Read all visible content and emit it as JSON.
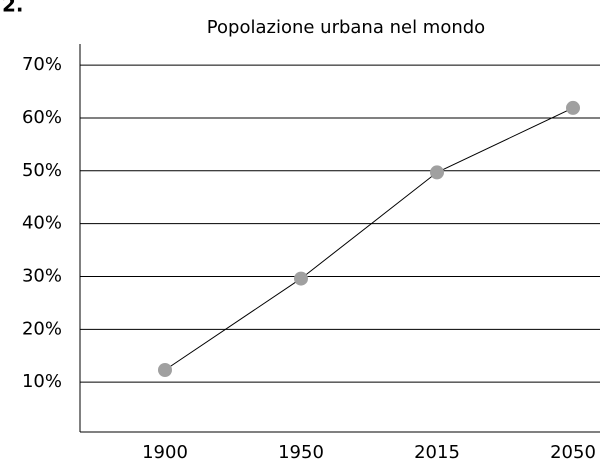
{
  "heading": "2.",
  "chart_data": {
    "type": "line",
    "title": "Popolazione urbana nel mondo",
    "categories": [
      "1900",
      "1950",
      "2015",
      "2050"
    ],
    "values": [
      12.3,
      29.6,
      49.7,
      61.9
    ],
    "color": "#a0a0a0",
    "line_color": "#000000",
    "ylim": [
      0,
      74
    ],
    "yticks": [
      {
        "value": 10,
        "label": "10%"
      },
      {
        "value": 20,
        "label": "20%"
      },
      {
        "value": 30,
        "label": "30%"
      },
      {
        "value": 40,
        "label": "40%"
      },
      {
        "value": 50,
        "label": "50%"
      },
      {
        "value": 60,
        "label": "60%"
      },
      {
        "value": 70,
        "label": "70%"
      }
    ],
    "grid": true
  }
}
